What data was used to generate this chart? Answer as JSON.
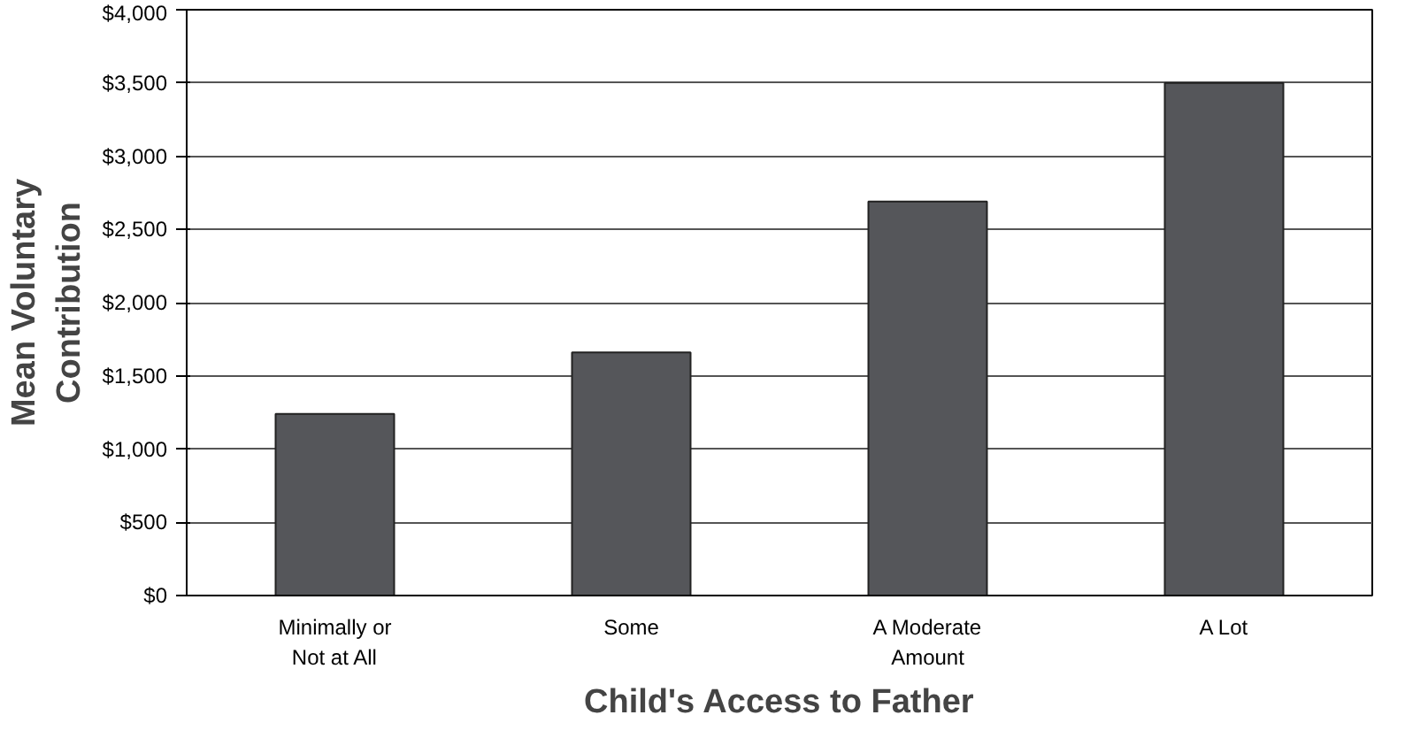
{
  "chart_data": {
    "type": "bar",
    "categories": [
      "Minimally or\nNot at All",
      "Some",
      "A Moderate\nAmount",
      "A Lot"
    ],
    "values": [
      1240,
      1660,
      2690,
      3500
    ],
    "color": "#55565a",
    "xlabel": "Child's Access to Father",
    "ylabel": "Mean Voluntary\nContribution",
    "ylim": [
      0,
      4000
    ],
    "yticks": [
      {
        "value": 0,
        "label": "$0"
      },
      {
        "value": 500,
        "label": "$500"
      },
      {
        "value": 1000,
        "label": "$1,000"
      },
      {
        "value": 1500,
        "label": "$1,500"
      },
      {
        "value": 2000,
        "label": "$2,000"
      },
      {
        "value": 2500,
        "label": "$2,500"
      },
      {
        "value": 3000,
        "label": "$3,000"
      },
      {
        "value": 3500,
        "label": "$3,500"
      },
      {
        "value": 4000,
        "label": "$4,000"
      }
    ],
    "grid": "y"
  }
}
